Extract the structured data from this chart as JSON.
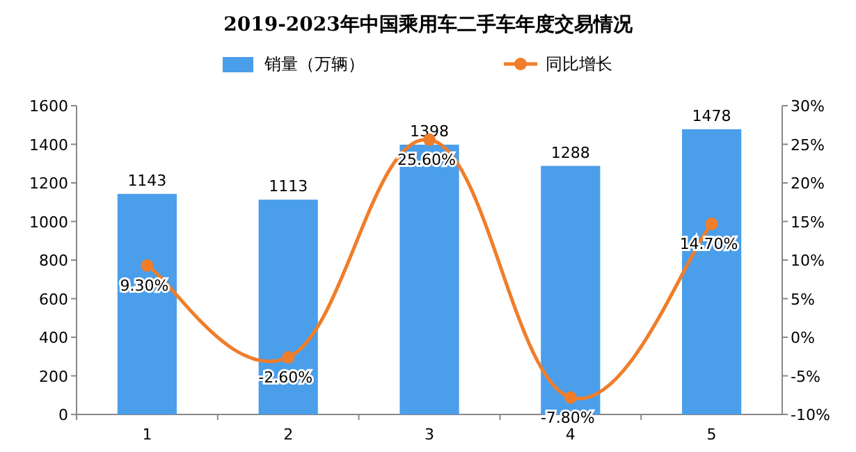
{
  "chart_data": {
    "type": "bar",
    "title": "2019-2023年中国乘用车二手车年度交易情况",
    "categories": [
      "1",
      "2",
      "3",
      "4",
      "5"
    ],
    "series": [
      {
        "name": "销量（万辆）",
        "color": "#4a9eea",
        "values": [
          1143,
          1113,
          1398,
          1288,
          1478
        ],
        "value_labels": [
          "1143",
          "1113",
          "1398",
          "1288",
          "1478"
        ]
      },
      {
        "name": "同比增长",
        "type": "line",
        "axis": "y2",
        "color": "#f07d2a",
        "marker": "circle",
        "values": [
          9.3,
          -2.6,
          25.6,
          -7.8,
          14.7
        ],
        "value_labels": [
          "9.30%",
          "-2.60%",
          "25.60%",
          "-7.80%",
          "14.70%"
        ]
      }
    ],
    "ylim": [
      0,
      1600
    ],
    "yticks": [
      0,
      200,
      400,
      600,
      800,
      1000,
      1200,
      1400,
      1600
    ],
    "y2lim": [
      -10,
      30
    ],
    "y2ticks": [
      {
        "value": -10,
        "label": "-10%"
      },
      {
        "value": -5,
        "label": "-5%"
      },
      {
        "value": 0,
        "label": "0%"
      },
      {
        "value": 5,
        "label": "5%"
      },
      {
        "value": 10,
        "label": "10%"
      },
      {
        "value": 15,
        "label": "15%"
      },
      {
        "value": 20,
        "label": "20%"
      },
      {
        "value": 25,
        "label": "25%"
      },
      {
        "value": 30,
        "label": "30%"
      }
    ],
    "grid": false,
    "legend": "top"
  }
}
